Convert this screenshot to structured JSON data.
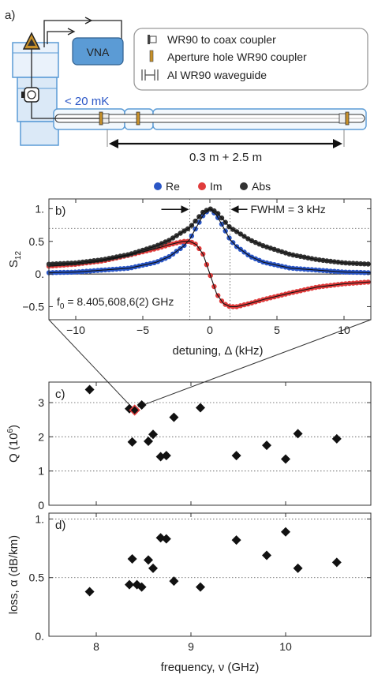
{
  "figure": {
    "panel_a": {
      "label": "a)",
      "vna_label": "VNA",
      "temperature_label": "< 20 mK",
      "length_label": "0.3 m + 2.5 m",
      "legend": [
        {
          "icon": "coax-coupler-icon",
          "text": "WR90 to coax coupler"
        },
        {
          "icon": "aperture-hole-icon",
          "text": "Aperture hole WR90 coupler"
        },
        {
          "icon": "waveguide-icon",
          "text": "Al WR90 waveguide"
        }
      ],
      "colors": {
        "cryostat": "#5b9bd5",
        "cryostat_fill": "#dbe9f7",
        "vna": "#5b9bd5",
        "amplifier": "#c8912a"
      }
    }
  },
  "chart_data": [
    {
      "type": "scatter",
      "panel_label": "b)",
      "xlabel": "detuning, Δ (kHz)",
      "ylabel": "S",
      "ylabel_sub": "12",
      "xlim": [
        -12,
        12
      ],
      "ylim": [
        -0.7,
        1.15
      ],
      "xticks": [
        -10,
        -5,
        0,
        5,
        10
      ],
      "yticks": [
        -0.5,
        0,
        0.5,
        1
      ],
      "ytick_labels": [
        "−0.5",
        "0.",
        "0.5",
        "1."
      ],
      "xtick_labels": [
        "−10",
        "−5",
        "0",
        "5",
        "10"
      ],
      "annotation_fwhm": "FWHM = 3 kHz",
      "annotation_f0_prefix": "f",
      "annotation_f0_sub": "0",
      "annotation_f0_value": " = 8.405,608,6(2) GHz",
      "fwhm_kHz": 3,
      "legend": [
        {
          "name": "Re",
          "color": "#2a56c6"
        },
        {
          "name": "Im",
          "color": "#e03c3c"
        },
        {
          "name": "Abs",
          "color": "#333333"
        }
      ],
      "grid": "dotted reference lines at y = 0.7 and x = ±1.5",
      "series": [
        {
          "name": "Re",
          "color": "#2a56c6",
          "x": [
            -12,
            -10,
            -8,
            -6,
            -4,
            -3,
            -2,
            -1.5,
            -1,
            -0.5,
            0,
            0.5,
            1,
            1.5,
            2,
            3,
            4,
            6,
            8,
            10,
            12
          ],
          "y": [
            0.02,
            0.03,
            0.06,
            0.09,
            0.18,
            0.27,
            0.42,
            0.53,
            0.72,
            0.9,
            1.0,
            0.9,
            0.72,
            0.53,
            0.42,
            0.27,
            0.18,
            0.09,
            0.06,
            0.03,
            0.02
          ]
        },
        {
          "name": "Im",
          "color": "#e03c3c",
          "x": [
            -12,
            -10,
            -8,
            -6,
            -4,
            -3,
            -2,
            -1.5,
            -1,
            -0.5,
            0,
            0.5,
            1,
            1.5,
            2,
            3,
            4,
            6,
            8,
            10,
            12
          ],
          "y": [
            0.12,
            0.15,
            0.2,
            0.29,
            0.39,
            0.45,
            0.5,
            0.5,
            0.45,
            0.3,
            0.0,
            -0.3,
            -0.45,
            -0.5,
            -0.5,
            -0.45,
            -0.39,
            -0.29,
            -0.2,
            -0.15,
            -0.12
          ]
        },
        {
          "name": "Abs",
          "color": "#333333",
          "x": [
            -12,
            -10,
            -8,
            -6,
            -4,
            -3,
            -2,
            -1.5,
            -1,
            -0.5,
            0,
            0.5,
            1,
            1.5,
            2,
            3,
            4,
            6,
            8,
            10,
            12
          ],
          "y": [
            0.15,
            0.17,
            0.22,
            0.3,
            0.43,
            0.52,
            0.65,
            0.71,
            0.83,
            0.95,
            1.0,
            0.95,
            0.83,
            0.71,
            0.65,
            0.52,
            0.43,
            0.3,
            0.22,
            0.17,
            0.15
          ]
        }
      ]
    },
    {
      "type": "scatter",
      "panel_label": "c)",
      "xlabel": "",
      "ylabel": "Q (10",
      "ylabel_sup": "6",
      "ylabel_end": ")",
      "xlim": [
        7.5,
        10.9
      ],
      "ylim": [
        0,
        3.6
      ],
      "yticks": [
        0,
        1,
        2,
        3
      ],
      "ytick_labels": [
        "0",
        "1",
        "2",
        "3"
      ],
      "grid": "dotted horizontal lines at y = 1, 2, 3",
      "highlighted_point": {
        "x": 8.4056,
        "y": 2.78,
        "color": "#e03c3c"
      },
      "series": [
        {
          "name": "",
          "color": "#111111",
          "x": [
            7.93,
            8.35,
            8.38,
            8.4,
            8.48,
            8.55,
            8.6,
            8.68,
            8.74,
            8.82,
            9.1,
            9.48,
            9.8,
            10.0,
            10.13,
            10.54
          ],
          "y": [
            3.38,
            2.82,
            1.85,
            2.78,
            2.93,
            1.87,
            2.07,
            1.42,
            1.45,
            2.57,
            2.85,
            1.45,
            1.75,
            1.35,
            2.09,
            1.94
          ]
        }
      ]
    },
    {
      "type": "scatter",
      "panel_label": "d)",
      "xlabel": "frequency, ν (GHz)",
      "ylabel": "loss, α (dB/km)",
      "xlim": [
        7.5,
        10.9
      ],
      "ylim": [
        0,
        1.05
      ],
      "xticks": [
        8,
        9,
        10
      ],
      "xtick_labels": [
        "8",
        "9",
        "10"
      ],
      "yticks": [
        0,
        0.5,
        1
      ],
      "ytick_labels": [
        "0.",
        "0.5",
        "1."
      ],
      "grid": "dotted horizontal lines at y = 0.5, 1",
      "series": [
        {
          "name": "",
          "color": "#111111",
          "x": [
            7.93,
            8.35,
            8.38,
            8.43,
            8.48,
            8.55,
            8.6,
            8.68,
            8.74,
            8.82,
            9.1,
            9.48,
            9.8,
            10.0,
            10.13,
            10.54
          ],
          "y": [
            0.38,
            0.44,
            0.66,
            0.44,
            0.42,
            0.65,
            0.58,
            0.84,
            0.83,
            0.47,
            0.42,
            0.82,
            0.69,
            0.89,
            0.58,
            0.63
          ]
        }
      ]
    }
  ]
}
